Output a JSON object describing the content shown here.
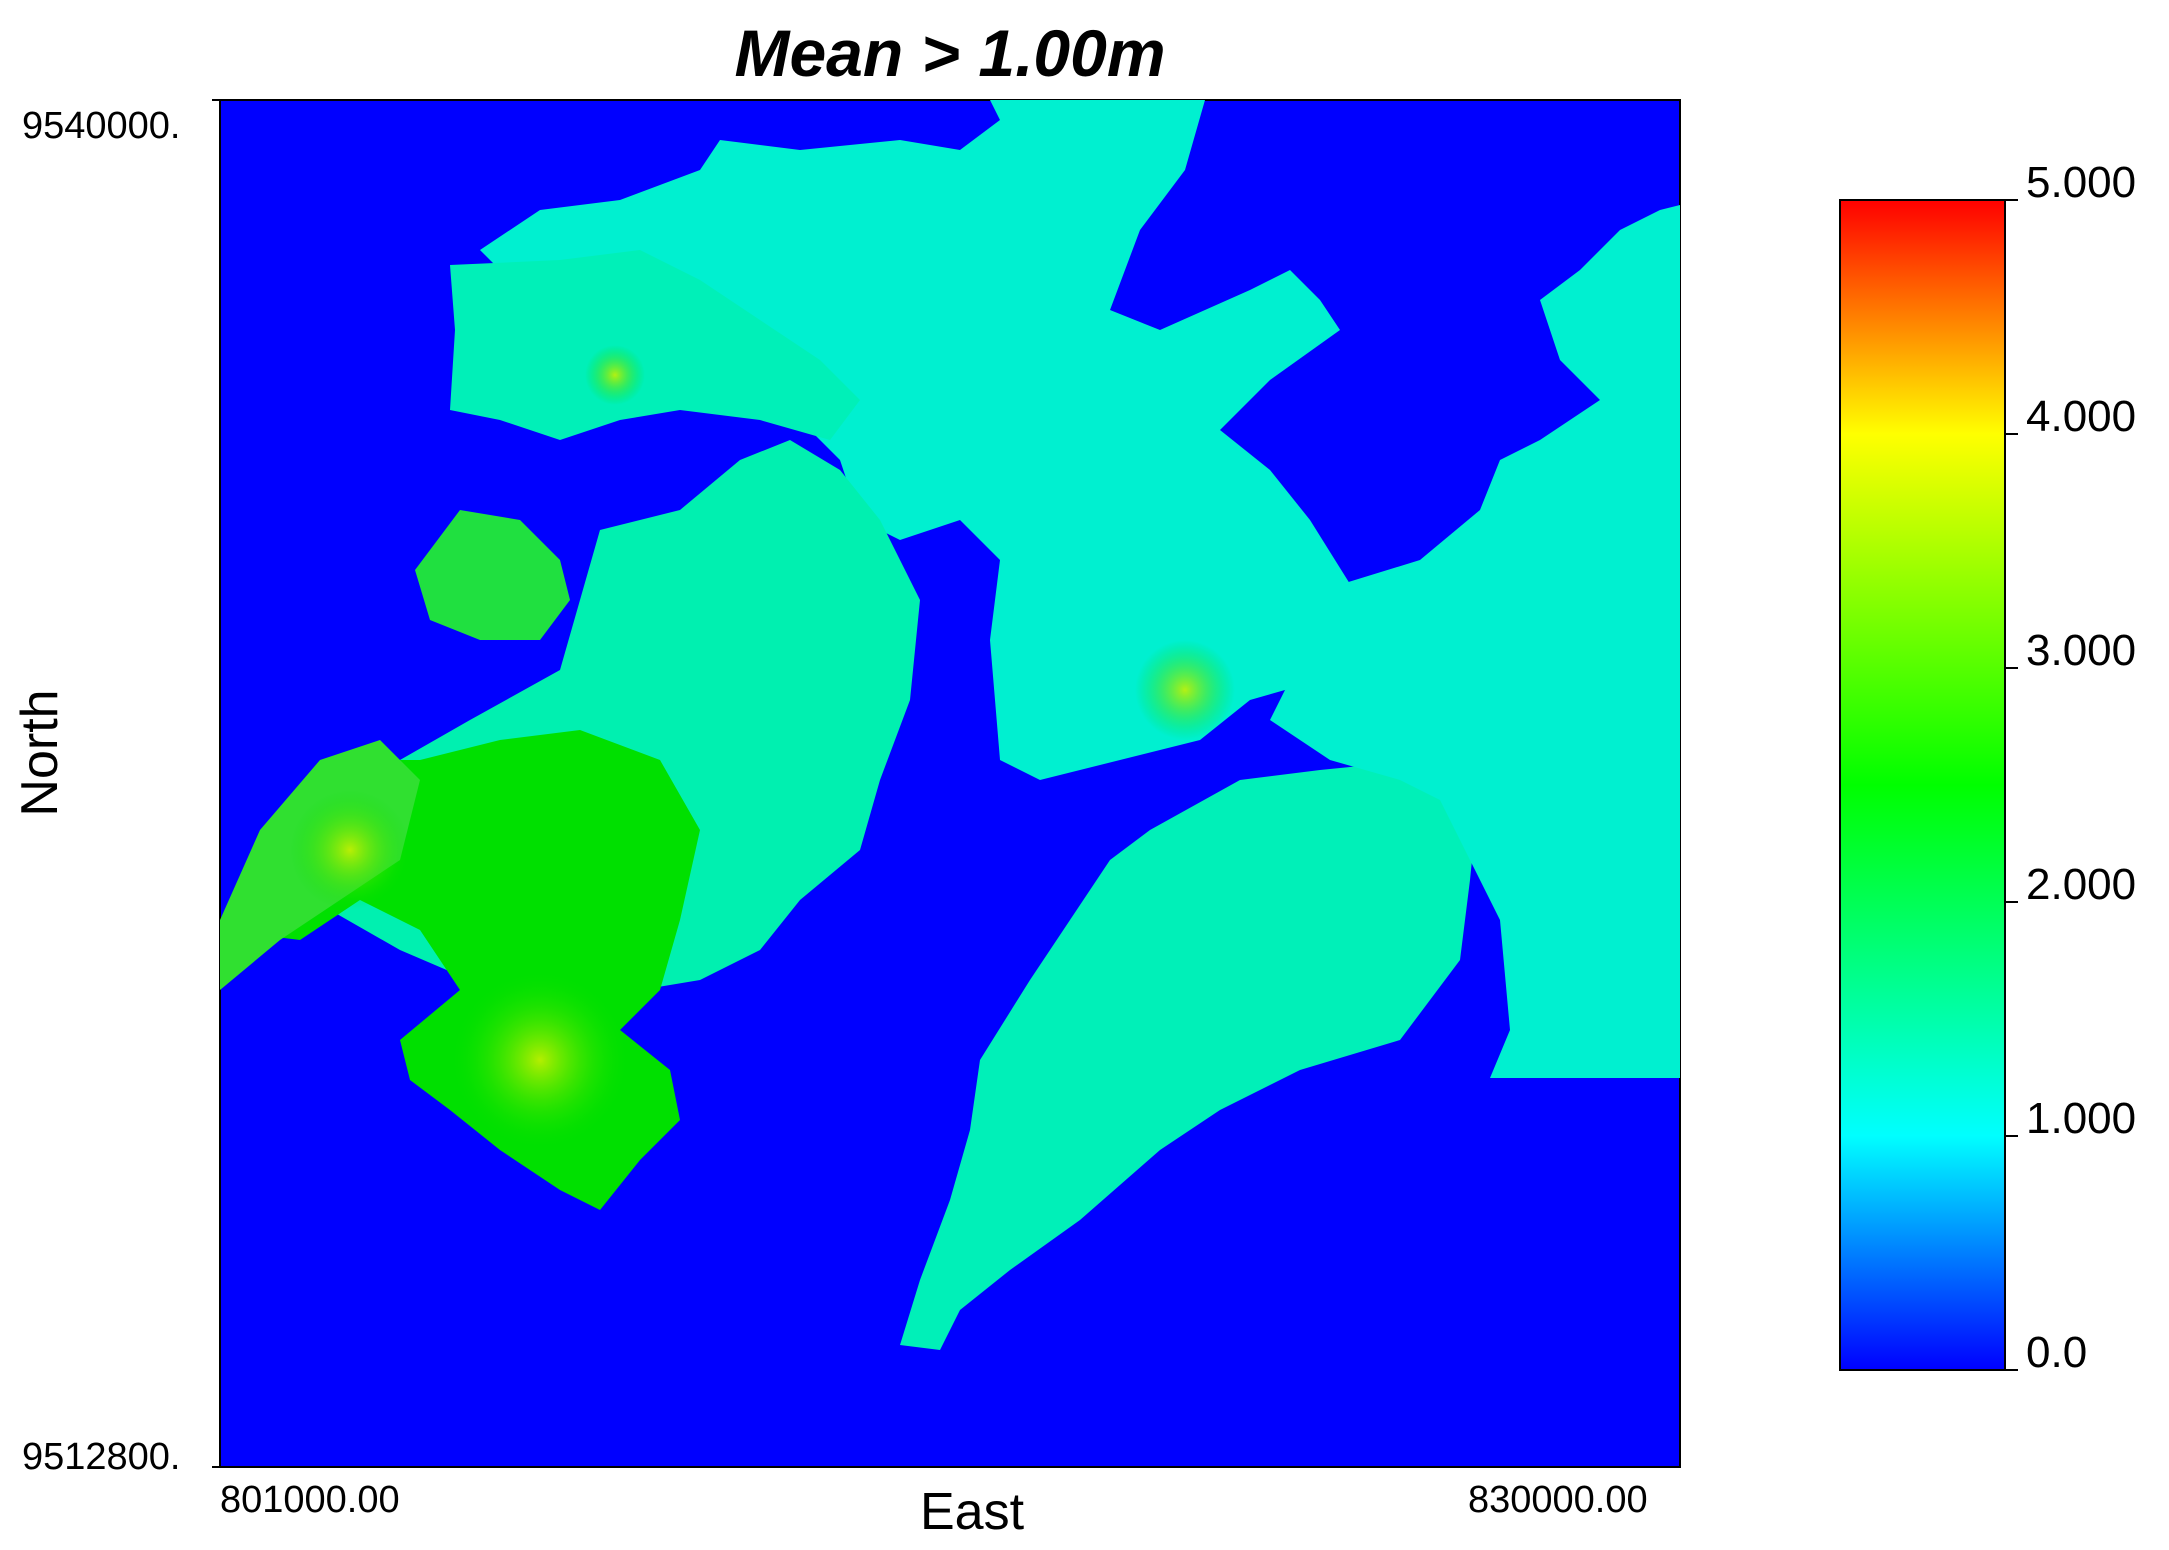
{
  "chart_data": {
    "type": "heatmap",
    "title": "Mean > 1.00m",
    "xlabel": "East",
    "ylabel": "North",
    "xlim": [
      801000.0,
      830000.0
    ],
    "ylim": [
      9512800.0,
      9540000.0
    ],
    "x_tick_labels": [
      "801000.00",
      "830000.00"
    ],
    "y_tick_labels": [
      "9540000.",
      "9512800."
    ],
    "colorbar": {
      "range": [
        0.0,
        5.0
      ],
      "ticks": [
        0.0,
        1.0,
        2.0,
        3.0,
        4.0,
        5.0
      ],
      "tick_labels": [
        "0.0",
        "1.000",
        "2.000",
        "3.000",
        "4.000",
        "5.000"
      ],
      "colormap": [
        "#0000ff",
        "#00ffff",
        "#00ff00",
        "#ffff00",
        "#ff0000"
      ],
      "colormap_stops": [
        0.0,
        1.0,
        2.5,
        4.0,
        5.0
      ]
    },
    "background_value": 0.0,
    "background_color": "#0000ff",
    "typical_value_range": [
      1.0,
      4.0
    ],
    "value_colors": {
      "low_cyan": "#00f0d8",
      "mid_aqua": "#00f0b0",
      "green": "#00e000",
      "yellow_green": "#a8f000"
    }
  }
}
